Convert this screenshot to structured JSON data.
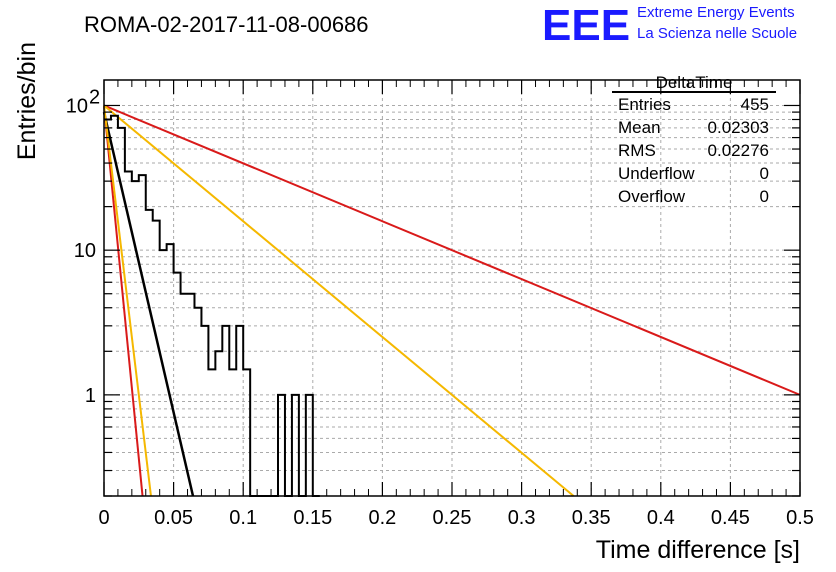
{
  "title": "ROMA-02-2017-11-08-00686",
  "logo": {
    "mark": "EEE",
    "line1": "Extreme Energy Events",
    "line2": "La Scienza nelle Scuole",
    "color": "#1a1aff"
  },
  "chart_data": {
    "type": "histogram",
    "xlabel": "Time difference [s]",
    "ylabel": "Entries/bin",
    "xlim": [
      0,
      0.5
    ],
    "ylim": [
      0.2,
      150
    ],
    "y_scale": "log",
    "grid": true,
    "x_ticks": [
      0,
      0.05,
      0.1,
      0.15,
      0.2,
      0.25,
      0.3,
      0.35,
      0.4,
      0.45,
      0.5
    ],
    "x_tick_labels": [
      "0",
      "0.05",
      "0.1",
      "0.15",
      "0.2",
      "0.25",
      "0.3",
      "0.35",
      "0.4",
      "0.45",
      "0.5"
    ],
    "y_major_ticks": [
      {
        "value": 1,
        "label": "1"
      },
      {
        "value": 10,
        "label": "10"
      },
      {
        "value": 100,
        "label": "10",
        "superscript": "2"
      }
    ],
    "histogram": {
      "bin_width": 0.005,
      "bin_starts": [
        0.0,
        0.005,
        0.01,
        0.015,
        0.02,
        0.025,
        0.03,
        0.035,
        0.04,
        0.045,
        0.05,
        0.055,
        0.06,
        0.065,
        0.07,
        0.075,
        0.08,
        0.085,
        0.09,
        0.095,
        0.1,
        0.105,
        0.11,
        0.115,
        0.12,
        0.125,
        0.13,
        0.135,
        0.14,
        0.145,
        0.15
      ],
      "values": [
        80,
        85,
        70,
        35,
        30,
        33,
        19,
        16,
        10,
        11,
        7,
        5,
        5,
        4,
        3,
        1.5,
        2,
        3,
        1.5,
        3,
        1.5,
        0,
        0.2,
        0.2,
        0.2,
        1,
        0.2,
        1,
        0.2,
        1,
        0
      ],
      "color": "#000000"
    },
    "fits": [
      {
        "color": "#000000",
        "y0": 90,
        "slope_per_s": -41.5
      },
      {
        "color": "#d91a1a",
        "y0": 100,
        "slope_per_s": -4
      },
      {
        "color": "#d91a1a",
        "y0": 100,
        "slope_per_s": -97.5
      },
      {
        "color": "#f5b800",
        "y0": 100,
        "slope_per_s": -8
      },
      {
        "color": "#f5b800",
        "y0": 100,
        "slope_per_s": -80
      }
    ],
    "stats": {
      "name": "DeltaTime",
      "rows": [
        {
          "label": "Entries",
          "value": "455"
        },
        {
          "label": "Mean",
          "value": "0.02303"
        },
        {
          "label": "RMS",
          "value": "0.02276"
        },
        {
          "label": "Underflow",
          "value": "0"
        },
        {
          "label": "Overflow",
          "value": "0"
        }
      ]
    }
  }
}
